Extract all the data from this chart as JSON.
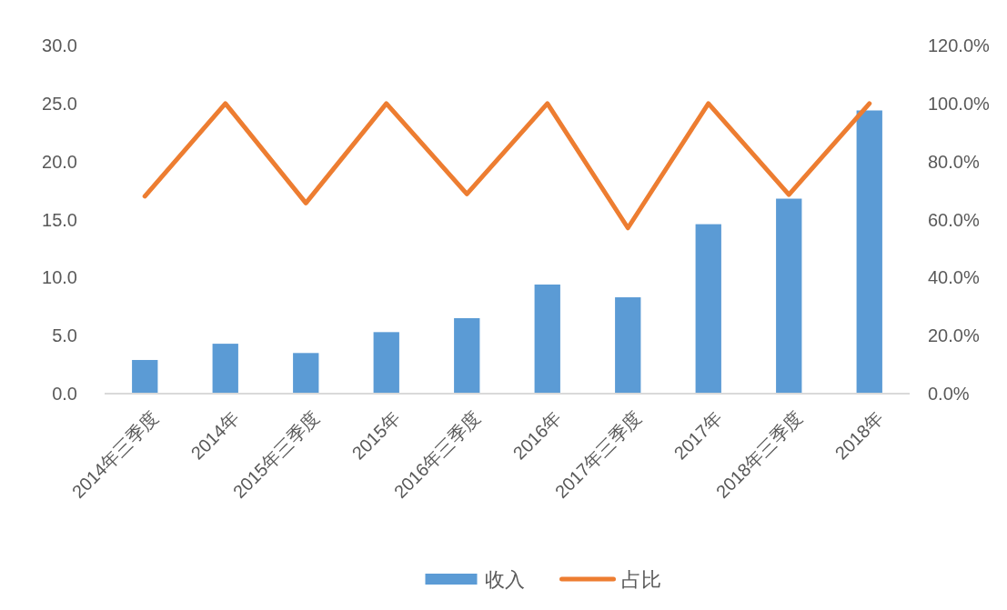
{
  "chart_data": {
    "type": "bar",
    "categories": [
      "2014年三季度",
      "2014年",
      "2015年三季度",
      "2015年",
      "2016年三季度",
      "2016年",
      "2017年三季度",
      "2017年",
      "2018年三季度",
      "2018年"
    ],
    "series": [
      {
        "name": "收入",
        "color": "#5b9bd5",
        "values": [
          2.9,
          4.3,
          3.5,
          5.3,
          6.5,
          9.4,
          8.3,
          14.6,
          16.8,
          24.4
        ]
      },
      {
        "name": "占比",
        "type": "line",
        "axis": "y2",
        "color": "#ed7d31",
        "values": [
          68.0,
          100,
          65.7,
          100,
          68.8,
          100,
          57.1,
          100,
          68.6,
          100
        ]
      }
    ],
    "ylim": [
      0,
      30
    ],
    "yticks": [
      {
        "value": 0,
        "label": "0.0"
      },
      {
        "value": 5,
        "label": "5.0"
      },
      {
        "value": 10,
        "label": "10.0"
      },
      {
        "value": 15,
        "label": "15.0"
      },
      {
        "value": 20,
        "label": "20.0"
      },
      {
        "value": 25,
        "label": "25.0"
      },
      {
        "value": 30,
        "label": "30.0"
      }
    ],
    "y2lim": [
      0,
      120
    ],
    "y2ticks": [
      {
        "value": 0,
        "label": "0.0%"
      },
      {
        "value": 20,
        "label": "20.0%"
      },
      {
        "value": 40,
        "label": "40.0%"
      },
      {
        "value": 60,
        "label": "60.0%"
      },
      {
        "value": 80,
        "label": "80.0%"
      },
      {
        "value": 100,
        "label": "100.0%"
      },
      {
        "value": 120,
        "label": "120.0%"
      }
    ],
    "grid": false,
    "legend": "bottom"
  }
}
